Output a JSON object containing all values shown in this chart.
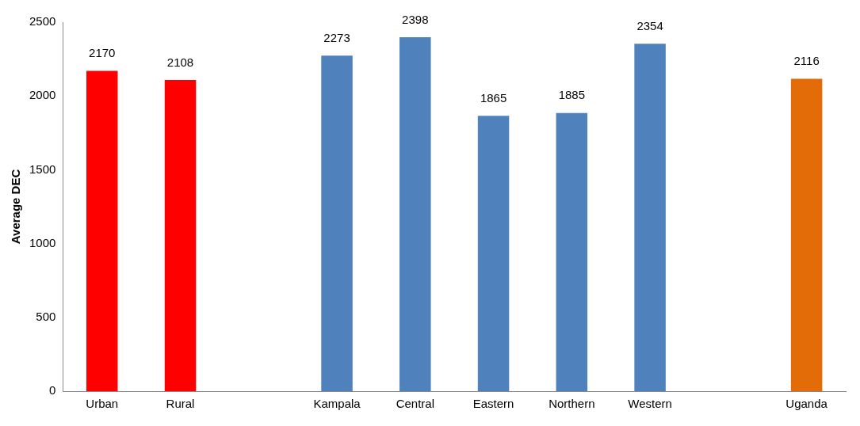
{
  "chart_data": {
    "type": "bar",
    "ylabel": "Average DEC",
    "categories": [
      "Urban",
      "Rural",
      null,
      "Kampala",
      "Central",
      "Eastern",
      "Northern",
      "Western",
      null,
      "Uganda"
    ],
    "values": [
      2170,
      2108,
      null,
      2273,
      2398,
      1865,
      1885,
      2354,
      null,
      2116
    ],
    "colors": [
      "#ff0000",
      "#ff0000",
      null,
      "#4f81bd",
      "#4f81bd",
      "#4f81bd",
      "#4f81bd",
      "#4f81bd",
      null,
      "#e36c09"
    ],
    "ylim": [
      0,
      2500
    ],
    "yticks": [
      0,
      500,
      1000,
      1500,
      2000,
      2500
    ],
    "grid": false,
    "legend": false,
    "data_labels": true
  }
}
